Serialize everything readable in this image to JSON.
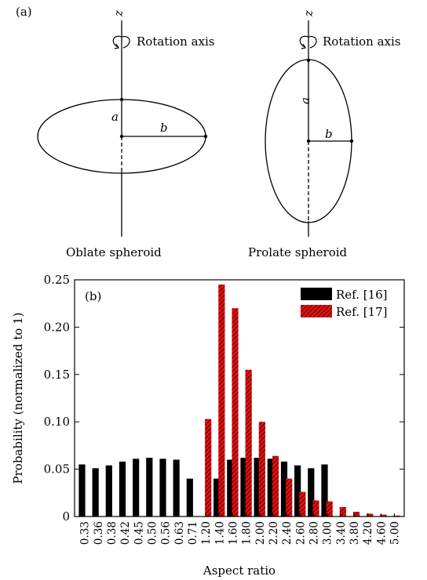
{
  "panel_a": {
    "label": "(a)",
    "axis_label": "z",
    "rotation_label": "Rotation axis",
    "semi_axis_a": "a",
    "semi_axis_b": "b",
    "oblate_caption": "Oblate spheroid",
    "prolate_caption": "Prolate spheroid"
  },
  "chart_data": {
    "type": "bar",
    "panel_label": "(b)",
    "xlabel": "Aspect ratio",
    "ylabel": "Probability (normalized to 1)",
    "ylim": [
      0,
      0.25
    ],
    "y_ticks": [
      "0",
      "0.05",
      "0.10",
      "0.15",
      "0.20",
      "0.25"
    ],
    "legend_position": "top-right",
    "categories": [
      "0.33",
      "0.36",
      "0.38",
      "0.42",
      "0.45",
      "0.50",
      "0.56",
      "0.63",
      "0.71",
      "1.20",
      "1.40",
      "1.60",
      "1.80",
      "2.00",
      "2.20",
      "2.40",
      "2.60",
      "2.80",
      "3.00",
      "3.40",
      "3.80",
      "4.20",
      "4.60",
      "5.00"
    ],
    "series": [
      {
        "name": "Ref. [16]",
        "color": "#000000",
        "values": [
          0.055,
          0.051,
          0.054,
          0.058,
          0.061,
          0.062,
          0.061,
          0.06,
          0.04,
          null,
          0.04,
          0.06,
          0.062,
          0.062,
          0.061,
          0.058,
          0.054,
          0.051,
          0.055,
          null,
          null,
          null,
          null,
          null
        ]
      },
      {
        "name": "Ref. [17]",
        "color": "#d00000",
        "values": [
          null,
          null,
          null,
          null,
          null,
          null,
          null,
          null,
          null,
          0.103,
          0.245,
          0.22,
          0.155,
          0.1,
          0.064,
          0.04,
          0.026,
          0.017,
          0.016,
          0.01,
          0.005,
          0.003,
          0.002,
          0.001
        ]
      }
    ]
  }
}
